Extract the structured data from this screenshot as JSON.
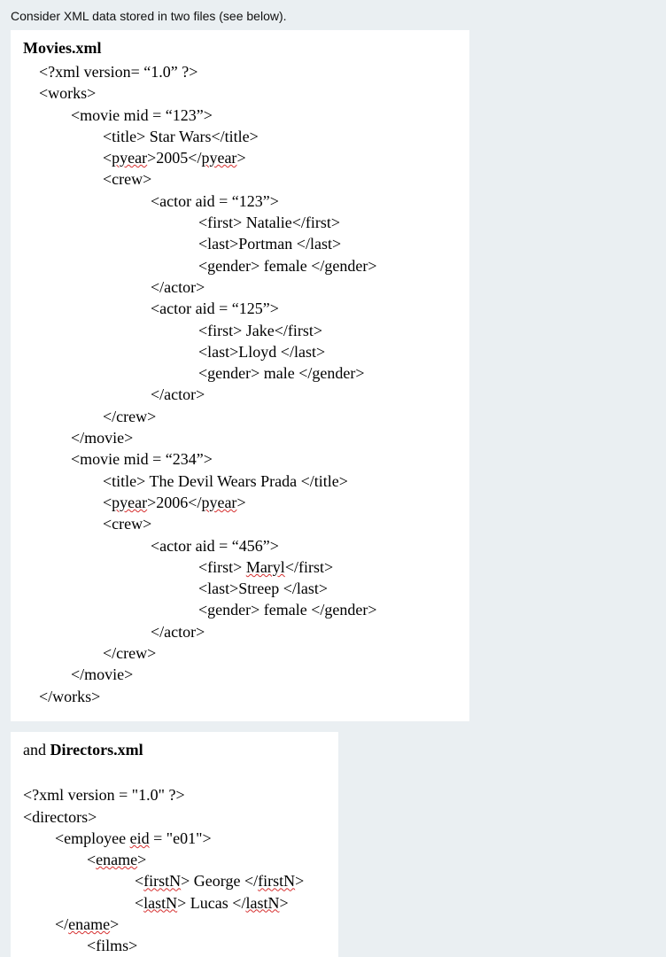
{
  "intro": "Consider XML data stored in two files (see below).",
  "file1": {
    "name": "Movies.xml",
    "lines": [
      {
        "indent": 1,
        "segments": [
          {
            "t": "<?xml version= “1.0” ?>"
          }
        ]
      },
      {
        "indent": 1,
        "segments": [
          {
            "t": "<works>"
          }
        ]
      },
      {
        "indent": 3,
        "segments": [
          {
            "t": "<movie mid = “123”>"
          }
        ]
      },
      {
        "indent": 5,
        "segments": [
          {
            "t": "<title> Star Wars</title>"
          }
        ]
      },
      {
        "indent": 5,
        "segments": [
          {
            "t": "<"
          },
          {
            "t": "pyear",
            "sq": true
          },
          {
            "t": ">2005</"
          },
          {
            "t": "pyear",
            "sq": true
          },
          {
            "t": ">"
          }
        ]
      },
      {
        "indent": 5,
        "segments": [
          {
            "t": "<crew>"
          }
        ]
      },
      {
        "indent": 8,
        "segments": [
          {
            "t": "<actor aid = “123”>"
          }
        ]
      },
      {
        "indent": 11,
        "segments": [
          {
            "t": "<first> Natalie</first>"
          }
        ]
      },
      {
        "indent": 11,
        "segments": [
          {
            "t": "<last>Portman </last>"
          }
        ]
      },
      {
        "indent": 11,
        "segments": [
          {
            "t": "<gender> female </gender>"
          }
        ]
      },
      {
        "indent": 8,
        "segments": [
          {
            "t": "</actor>"
          }
        ]
      },
      {
        "indent": 8,
        "segments": [
          {
            "t": "<actor aid = “125”>"
          }
        ]
      },
      {
        "indent": 11,
        "segments": [
          {
            "t": "<first> Jake</first>"
          }
        ]
      },
      {
        "indent": 11,
        "segments": [
          {
            "t": "<last>Lloyd </last>"
          }
        ]
      },
      {
        "indent": 11,
        "segments": [
          {
            "t": "<gender> male </gender>"
          }
        ]
      },
      {
        "indent": 8,
        "segments": [
          {
            "t": "</actor>"
          }
        ]
      },
      {
        "indent": 5,
        "segments": [
          {
            "t": "</crew>"
          }
        ]
      },
      {
        "indent": 3,
        "segments": [
          {
            "t": "</movie>"
          }
        ]
      },
      {
        "indent": 3,
        "segments": [
          {
            "t": "<movie mid = “234”>"
          }
        ]
      },
      {
        "indent": 5,
        "segments": [
          {
            "t": "<title> The Devil Wears Prada </title>"
          }
        ]
      },
      {
        "indent": 5,
        "segments": [
          {
            "t": "<"
          },
          {
            "t": "pyear",
            "sq": true
          },
          {
            "t": ">2006</"
          },
          {
            "t": "pyear",
            "sq": true
          },
          {
            "t": ">"
          }
        ]
      },
      {
        "indent": 5,
        "segments": [
          {
            "t": "<crew>"
          }
        ]
      },
      {
        "indent": 8,
        "segments": [
          {
            "t": "<actor aid = “456”>"
          }
        ]
      },
      {
        "indent": 11,
        "segments": [
          {
            "t": "<first> "
          },
          {
            "t": "Maryl",
            "sq": true
          },
          {
            "t": "</first>"
          }
        ]
      },
      {
        "indent": 11,
        "segments": [
          {
            "t": "<last>Streep </last>"
          }
        ]
      },
      {
        "indent": 11,
        "segments": [
          {
            "t": "<gender> female </gender>"
          }
        ]
      },
      {
        "indent": 8,
        "segments": [
          {
            "t": "</actor>"
          }
        ]
      },
      {
        "indent": 5,
        "segments": [
          {
            "t": "</crew>"
          }
        ]
      },
      {
        "indent": 3,
        "segments": [
          {
            "t": "</movie>"
          }
        ]
      },
      {
        "indent": 1,
        "segments": [
          {
            "t": "</works>"
          }
        ]
      }
    ]
  },
  "file2": {
    "pre": "and ",
    "name": "Directors.xml",
    "lines": [
      {
        "indent": 0,
        "segments": [
          {
            "t": ""
          }
        ]
      },
      {
        "indent": 0,
        "segments": [
          {
            "t": "<?xml version = \"1.0\" ?>"
          }
        ]
      },
      {
        "indent": 0,
        "segments": [
          {
            "t": "<directors>"
          }
        ]
      },
      {
        "indent": 2,
        "segments": [
          {
            "t": "<employee "
          },
          {
            "t": "eid",
            "sq": true
          },
          {
            "t": " = \"e01\">"
          }
        ]
      },
      {
        "indent": 4,
        "segments": [
          {
            "t": "<"
          },
          {
            "t": "ename",
            "sq": true
          },
          {
            "t": ">"
          }
        ]
      },
      {
        "indent": 7,
        "segments": [
          {
            "t": "<"
          },
          {
            "t": "firstN",
            "sq": true
          },
          {
            "t": "> George </"
          },
          {
            "t": "firstN",
            "sq": true
          },
          {
            "t": ">"
          }
        ]
      },
      {
        "indent": 7,
        "segments": [
          {
            "t": "<"
          },
          {
            "t": "lastN",
            "sq": true
          },
          {
            "t": "> Lucas </"
          },
          {
            "t": "lastN",
            "sq": true
          },
          {
            "t": ">"
          }
        ]
      },
      {
        "indent": 2,
        "segments": [
          {
            "t": "</"
          },
          {
            "t": "ename",
            "sq": true
          },
          {
            "t": ">"
          }
        ]
      },
      {
        "indent": 4,
        "segments": [
          {
            "t": "<films>"
          }
        ]
      }
    ]
  },
  "style": {
    "indent_unit": "    ",
    "background": "#eaeff2",
    "panel_bg": "#ffffff",
    "squiggle_color": "#d62f2f",
    "intro_font": "Arial",
    "body_font": "Times New Roman",
    "font_size_body": 18,
    "font_size_intro": 14
  }
}
